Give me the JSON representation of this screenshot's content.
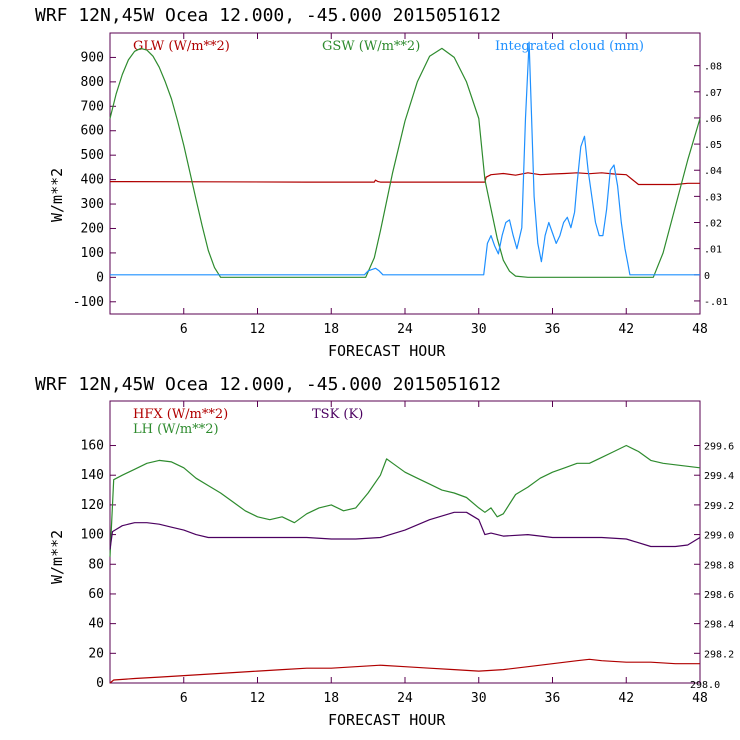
{
  "colors": {
    "red": "#b00000",
    "green": "#2e8b2e",
    "blue": "#1e90ff",
    "purple": "#4b0060",
    "axis": "#5a0050"
  },
  "chart_data": [
    {
      "type": "line",
      "title": "WRF   12N,45W Ocea  12.000, -45.000  2015051612",
      "xlabel": "FORECAST HOUR",
      "ylabel": "W/m**2",
      "xlim": [
        0,
        48
      ],
      "ylim": [
        -150,
        1000
      ],
      "xticks": [
        6,
        12,
        18,
        24,
        30,
        36,
        42,
        48
      ],
      "yticks": [
        -100,
        0,
        100,
        200,
        300,
        400,
        500,
        600,
        700,
        800,
        900
      ],
      "right_axis": {
        "range": [
          -0.015,
          0.0925
        ],
        "ticks": [
          -0.01,
          0,
          0.01,
          0.02,
          0.03,
          0.04,
          0.05,
          0.06,
          0.07,
          0.08
        ],
        "labels": [
          "-.01",
          "0",
          ".01",
          ".02",
          ".03",
          ".04",
          ".05",
          ".06",
          ".07",
          ".08"
        ]
      },
      "series": [
        {
          "name": "GLW (W/m**2)",
          "color": "red",
          "axis": "left",
          "x": [
            0,
            8,
            16,
            21.5,
            21.6,
            21.8,
            22,
            30.5,
            30.6,
            31,
            32,
            33,
            34,
            35,
            36,
            37,
            38,
            39,
            40,
            41,
            42,
            42.5,
            43,
            44,
            45,
            46,
            47,
            48
          ],
          "y": [
            392,
            391,
            390,
            390,
            398,
            392,
            390,
            390,
            410,
            420,
            425,
            418,
            428,
            420,
            423,
            425,
            428,
            424,
            428,
            423,
            420,
            400,
            380,
            380,
            380,
            380,
            385,
            385
          ]
        },
        {
          "name": "GSW (W/m**2)",
          "color": "green",
          "axis": "left",
          "x": [
            0,
            0.5,
            1,
            1.5,
            2,
            2.5,
            3,
            3.5,
            4,
            4.5,
            5,
            5.5,
            6,
            6.5,
            7,
            7.5,
            8,
            8.5,
            9,
            20.8,
            21.5,
            22,
            23,
            24,
            25,
            26,
            27,
            28,
            29,
            30,
            30.5,
            31,
            31.5,
            32,
            32.5,
            33,
            34,
            35,
            44.2,
            45,
            46,
            47,
            48
          ],
          "y": [
            650,
            750,
            830,
            890,
            925,
            937,
            930,
            905,
            860,
            800,
            730,
            640,
            540,
            430,
            320,
            210,
            110,
            40,
            0,
            0,
            80,
            190,
            430,
            640,
            800,
            905,
            937,
            900,
            800,
            650,
            400,
            280,
            160,
            70,
            25,
            5,
            0,
            0,
            0,
            100,
            290,
            480,
            650
          ]
        },
        {
          "name": "Integrated cloud (mm)",
          "color": "blue",
          "axis": "right",
          "x": [
            0,
            20.7,
            21,
            21.3,
            21.6,
            21.9,
            22.2,
            30.4,
            30.7,
            31,
            31.3,
            31.6,
            31.9,
            32.2,
            32.5,
            32.8,
            33.1,
            33.5,
            33.8,
            34.1,
            34.3,
            34.5,
            34.8,
            35.1,
            35.4,
            35.7,
            36,
            36.3,
            36.6,
            36.9,
            37.2,
            37.5,
            37.8,
            38,
            38.3,
            38.6,
            38.9,
            39.2,
            39.5,
            39.8,
            40.1,
            40.4,
            40.7,
            41,
            41.3,
            41.6,
            41.9,
            42.1,
            42.3,
            48
          ],
          "y": [
            0,
            0,
            0.0015,
            0.002,
            0.0025,
            0.0015,
            0,
            0,
            0.012,
            0.015,
            0.011,
            0.008,
            0.015,
            0.02,
            0.021,
            0.015,
            0.01,
            0.018,
            0.06,
            0.089,
            0.06,
            0.03,
            0.012,
            0.005,
            0.015,
            0.02,
            0.016,
            0.012,
            0.015,
            0.02,
            0.022,
            0.018,
            0.024,
            0.035,
            0.049,
            0.053,
            0.04,
            0.03,
            0.02,
            0.015,
            0.015,
            0.025,
            0.04,
            0.042,
            0.034,
            0.02,
            0.01,
            0.005,
            0,
            0
          ]
        }
      ]
    },
    {
      "type": "line",
      "title": "WRF   12N,45W Ocea  12.000, -45.000  2015051612",
      "xlabel": "FORECAST HOUR",
      "ylabel": "W/m**2",
      "xlim": [
        0,
        48
      ],
      "ylim": [
        0,
        190
      ],
      "xticks": [
        6,
        12,
        18,
        24,
        30,
        36,
        42,
        48
      ],
      "yticks": [
        0,
        20,
        40,
        60,
        80,
        100,
        120,
        140,
        160
      ],
      "right_axis": {
        "range": [
          298.0,
          299.9
        ],
        "ticks": [
          298.2,
          298.4,
          298.6,
          298.8,
          299.0,
          299.2,
          299.4,
          299.6
        ],
        "labels": [
          "298.2",
          "298.4",
          "298.6",
          "298.8",
          "299.0",
          "299.2",
          "299.4",
          "299.6"
        ],
        "corner_label": "298.0"
      },
      "series": [
        {
          "name": "HFX (W/m**2)",
          "color": "red",
          "axis": "left",
          "x": [
            0,
            0.3,
            2,
            4,
            6,
            8,
            10,
            12,
            14,
            16,
            18,
            20,
            22,
            24,
            26,
            28,
            30,
            32,
            34,
            36,
            38,
            39,
            40,
            42,
            44,
            46,
            48
          ],
          "y": [
            0,
            2,
            3,
            4,
            5,
            6,
            7,
            8,
            9,
            10,
            10,
            11,
            12,
            11,
            10,
            9,
            8,
            9,
            11,
            13,
            15,
            16,
            15,
            14,
            14,
            13,
            13
          ]
        },
        {
          "name": "LH  (W/m**2)",
          "color": "green",
          "axis": "left",
          "x": [
            0,
            0.3,
            1,
            2,
            3,
            4,
            5,
            6,
            7,
            8,
            9,
            10,
            11,
            12,
            13,
            14,
            15,
            16,
            17,
            18,
            19,
            20,
            21,
            22,
            22.5,
            23,
            24,
            25,
            26,
            27,
            28,
            29,
            30,
            30.5,
            31,
            31.5,
            32,
            33,
            34,
            35,
            36,
            37,
            38,
            39,
            40,
            41,
            42,
            43,
            44,
            45,
            46,
            47,
            48
          ],
          "y": [
            85,
            137,
            140,
            144,
            148,
            150,
            149,
            145,
            138,
            133,
            128,
            122,
            116,
            112,
            110,
            112,
            108,
            114,
            118,
            120,
            116,
            118,
            128,
            140,
            151,
            148,
            142,
            138,
            134,
            130,
            128,
            125,
            118,
            115,
            118,
            112,
            114,
            127,
            132,
            138,
            142,
            145,
            148,
            148,
            152,
            156,
            160,
            156,
            150,
            148,
            147,
            146,
            145
          ]
        },
        {
          "name": "TSK (K)",
          "color": "purple",
          "axis": "right",
          "x": [
            0,
            0.2,
            1,
            2,
            3,
            4,
            5,
            6,
            7,
            8,
            10,
            12,
            14,
            16,
            18,
            20,
            22,
            24,
            26,
            28,
            29,
            30,
            30.5,
            31,
            32,
            34,
            36,
            38,
            40,
            42,
            44,
            46,
            47,
            48
          ],
          "y": [
            298.9,
            299.02,
            299.06,
            299.08,
            299.08,
            299.07,
            299.05,
            299.03,
            299.0,
            298.98,
            298.98,
            298.98,
            298.98,
            298.98,
            298.97,
            298.97,
            298.98,
            299.03,
            299.1,
            299.15,
            299.15,
            299.1,
            299.0,
            299.01,
            298.99,
            299.0,
            298.98,
            298.98,
            298.98,
            298.97,
            298.92,
            298.92,
            298.93,
            298.98
          ]
        }
      ]
    }
  ]
}
